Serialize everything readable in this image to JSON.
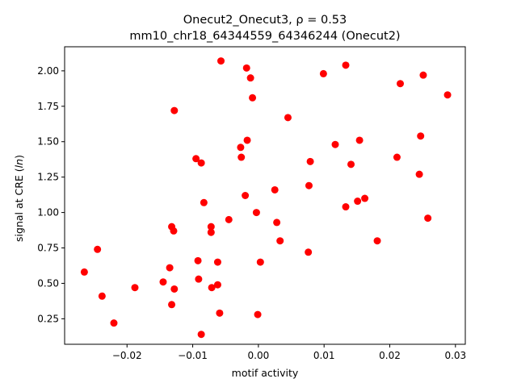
{
  "chart_data": {
    "type": "scatter",
    "title_line1": "Onecut2_Onecut3, ρ = 0.53",
    "title_line2": "mm10_chr18_64344559_64346244 (Onecut2)",
    "xlabel": "motif activity",
    "ylabel": "signal at CRE (ln)",
    "xlim": [
      -0.0295,
      0.0315
    ],
    "ylim": [
      0.07,
      2.17
    ],
    "xticks": [
      -0.02,
      -0.01,
      0.0,
      0.01,
      0.02,
      0.03
    ],
    "xtick_labels": [
      "−0.02",
      "−0.01",
      "0.00",
      "0.01",
      "0.02",
      "0.03"
    ],
    "yticks": [
      0.25,
      0.5,
      0.75,
      1.0,
      1.25,
      1.5,
      1.75,
      2.0
    ],
    "ytick_labels": [
      "0.25",
      "0.50",
      "0.75",
      "1.00",
      "1.25",
      "1.50",
      "1.75",
      "2.00"
    ],
    "grid": false,
    "marker_color": "#ff0000",
    "points": [
      {
        "x": -0.0265,
        "y": 0.58
      },
      {
        "x": -0.0245,
        "y": 0.74
      },
      {
        "x": -0.0238,
        "y": 0.41
      },
      {
        "x": -0.022,
        "y": 0.22
      },
      {
        "x": -0.0188,
        "y": 0.47
      },
      {
        "x": -0.0145,
        "y": 0.51
      },
      {
        "x": -0.0135,
        "y": 0.61
      },
      {
        "x": -0.0132,
        "y": 0.35
      },
      {
        "x": -0.0132,
        "y": 0.9
      },
      {
        "x": -0.0129,
        "y": 0.87
      },
      {
        "x": -0.0128,
        "y": 0.46
      },
      {
        "x": -0.0128,
        "y": 1.72
      },
      {
        "x": -0.0095,
        "y": 1.38
      },
      {
        "x": -0.0092,
        "y": 0.66
      },
      {
        "x": -0.0091,
        "y": 0.53
      },
      {
        "x": -0.0087,
        "y": 1.35
      },
      {
        "x": -0.0087,
        "y": 0.14
      },
      {
        "x": -0.0083,
        "y": 1.07
      },
      {
        "x": -0.0072,
        "y": 0.9
      },
      {
        "x": -0.0072,
        "y": 0.86
      },
      {
        "x": -0.0071,
        "y": 0.47
      },
      {
        "x": -0.0062,
        "y": 0.65
      },
      {
        "x": -0.0062,
        "y": 0.49
      },
      {
        "x": -0.0059,
        "y": 0.29
      },
      {
        "x": -0.0057,
        "y": 2.07
      },
      {
        "x": -0.0045,
        "y": 0.95
      },
      {
        "x": -0.0027,
        "y": 1.46
      },
      {
        "x": -0.0026,
        "y": 1.39
      },
      {
        "x": -0.002,
        "y": 1.12
      },
      {
        "x": -0.0018,
        "y": 2.02
      },
      {
        "x": -0.0017,
        "y": 1.51
      },
      {
        "x": -0.0012,
        "y": 1.95
      },
      {
        "x": -0.0009,
        "y": 1.81
      },
      {
        "x": -0.0003,
        "y": 1.0
      },
      {
        "x": -0.0001,
        "y": 0.28
      },
      {
        "x": 0.0003,
        "y": 0.65
      },
      {
        "x": 0.0025,
        "y": 1.16
      },
      {
        "x": 0.0028,
        "y": 0.93
      },
      {
        "x": 0.0033,
        "y": 0.8
      },
      {
        "x": 0.0045,
        "y": 1.67
      },
      {
        "x": 0.0076,
        "y": 0.72
      },
      {
        "x": 0.0077,
        "y": 1.19
      },
      {
        "x": 0.0079,
        "y": 1.36
      },
      {
        "x": 0.0099,
        "y": 1.98
      },
      {
        "x": 0.0117,
        "y": 1.48
      },
      {
        "x": 0.0133,
        "y": 2.04
      },
      {
        "x": 0.0133,
        "y": 1.04
      },
      {
        "x": 0.0141,
        "y": 1.34
      },
      {
        "x": 0.0151,
        "y": 1.08
      },
      {
        "x": 0.0154,
        "y": 1.51
      },
      {
        "x": 0.0162,
        "y": 1.1
      },
      {
        "x": 0.0181,
        "y": 0.8
      },
      {
        "x": 0.0211,
        "y": 1.39
      },
      {
        "x": 0.0216,
        "y": 1.91
      },
      {
        "x": 0.0245,
        "y": 1.27
      },
      {
        "x": 0.0247,
        "y": 1.54
      },
      {
        "x": 0.0251,
        "y": 1.97
      },
      {
        "x": 0.0258,
        "y": 0.96
      },
      {
        "x": 0.0288,
        "y": 1.83
      }
    ]
  }
}
